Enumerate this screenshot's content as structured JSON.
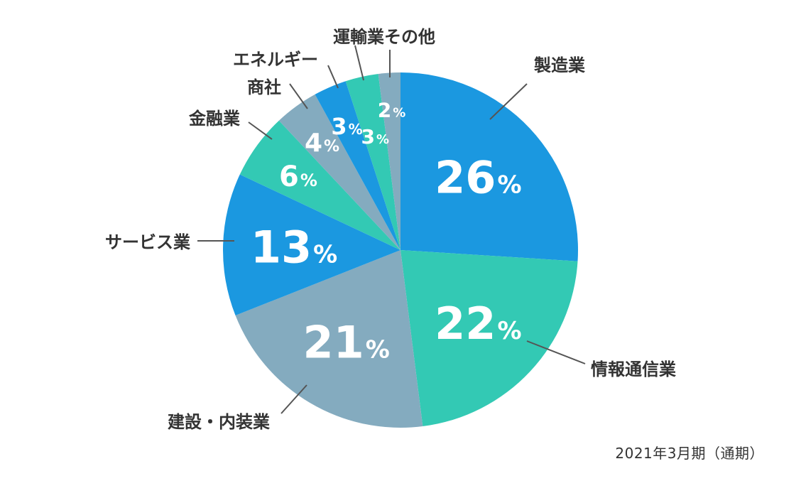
{
  "chart_data": {
    "type": "pie",
    "categories": [
      "製造業",
      "情報通信業",
      "建設・内装業",
      "サービス業",
      "金融業",
      "商社",
      "エネルギー",
      "運輸業",
      "その他"
    ],
    "values": [
      26,
      22,
      21,
      13,
      6,
      4,
      3,
      3,
      2
    ],
    "value_labels": [
      "26",
      "22",
      "21",
      "13",
      "6",
      "4",
      "3",
      "3",
      "2"
    ],
    "unit": "%",
    "colors": [
      "#1b98e0",
      "#33c9b4",
      "#84abbf",
      "#1b98e0",
      "#33c9b4",
      "#84abbf",
      "#1b98e0",
      "#33c9b4",
      "#84abbf"
    ],
    "start": "12 o'clock",
    "direction": "clockwise"
  },
  "footnote": "2021年3月期（通期）"
}
